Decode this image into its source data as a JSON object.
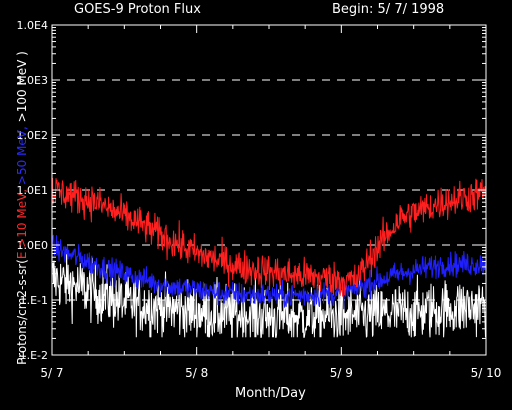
{
  "title": "GOES-9 Proton Flux",
  "begin_label": "Begin: 5/ 7/ 1998",
  "xlabel": "Month/Day",
  "ylabel_parts": [
    {
      "text": "Protons/cm2-s-sr(",
      "color": "#ffffff"
    },
    {
      "text": "E >10 MeV, ",
      "color": "#ff2a2a"
    },
    {
      "text": ">50 MeV, ",
      "color": "#2a2aff"
    },
    {
      "text": ">100 MeV )",
      "color": "#ffffff"
    }
  ],
  "chart_data": {
    "type": "line",
    "title": "GOES-9 Proton Flux",
    "xlabel": "Month/Day",
    "ylabel": "Protons/cm2-s-sr(E >10 MeV, >50 MeV, >100 MeV )",
    "y_scale": "log",
    "ylim": [
      0.01,
      10000
    ],
    "xlim_days": [
      0,
      3
    ],
    "x_tick_labels": [
      "5/ 7",
      "5/ 8",
      "5/ 9",
      "5/ 10"
    ],
    "y_tick_labels": [
      "1.E-2",
      "1.E-1",
      "1.0E0",
      "1.0E1",
      "1.0E2",
      "1.0E3",
      "1.0E4"
    ],
    "grid": "dashed horizontal",
    "series": [
      {
        "name": "E >10 MeV",
        "color": "#ff2020",
        "t": [
          0,
          0.3,
          0.6,
          0.8,
          1.0,
          1.3,
          1.6,
          1.9,
          2.1,
          2.2,
          2.4,
          2.7,
          3.0
        ],
        "values": [
          10,
          6,
          2.5,
          1.3,
          0.7,
          0.4,
          0.3,
          0.25,
          0.22,
          0.6,
          3,
          6,
          9
        ],
        "noise": 0.35
      },
      {
        "name": ">50 MeV",
        "color": "#2020ff",
        "t": [
          0,
          0.4,
          0.8,
          1.2,
          1.6,
          2.0,
          2.4,
          2.7,
          3.0
        ],
        "values": [
          0.9,
          0.35,
          0.18,
          0.13,
          0.12,
          0.13,
          0.3,
          0.45,
          0.45
        ],
        "noise": 0.25
      },
      {
        "name": ">100 MeV",
        "color": "#ffffff",
        "t": [
          0,
          0.5,
          1.0,
          1.5,
          2.0,
          2.5,
          3.0
        ],
        "values": [
          0.25,
          0.09,
          0.06,
          0.05,
          0.05,
          0.06,
          0.08
        ],
        "noise": 0.6
      }
    ]
  }
}
